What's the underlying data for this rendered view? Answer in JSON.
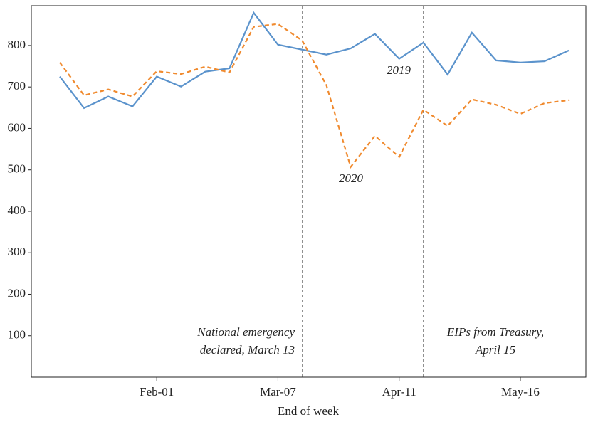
{
  "chart_data": {
    "type": "line",
    "x_label": "End of week",
    "categories": [
      null,
      null,
      null,
      null,
      "Feb-01",
      null,
      null,
      null,
      null,
      "Mar-07",
      null,
      null,
      null,
      null,
      "Apr-11",
      null,
      null,
      null,
      null,
      "May-16",
      null,
      null
    ],
    "series": [
      {
        "name": "2019",
        "color": "#5b93cc",
        "dash": false,
        "values": [
          725,
          649,
          677,
          653,
          725,
          701,
          737,
          745,
          879,
          802,
          790,
          778,
          793,
          828,
          768,
          807,
          730,
          831,
          764,
          759,
          762,
          788
        ]
      },
      {
        "name": "2020",
        "color": "#f08a2e",
        "dash": true,
        "values": [
          759,
          680,
          694,
          677,
          738,
          731,
          749,
          735,
          845,
          852,
          812,
          704,
          507,
          582,
          531,
          645,
          606,
          670,
          657,
          635,
          661,
          668
        ]
      }
    ],
    "annotations": [
      "National emergency",
      "declared, March 13",
      "EIPs from Treasury,",
      "April 15"
    ],
    "ylim": [
      0,
      896
    ],
    "yticks": [
      100,
      200,
      300,
      400,
      500,
      600,
      700,
      800
    ],
    "grid": false
  }
}
